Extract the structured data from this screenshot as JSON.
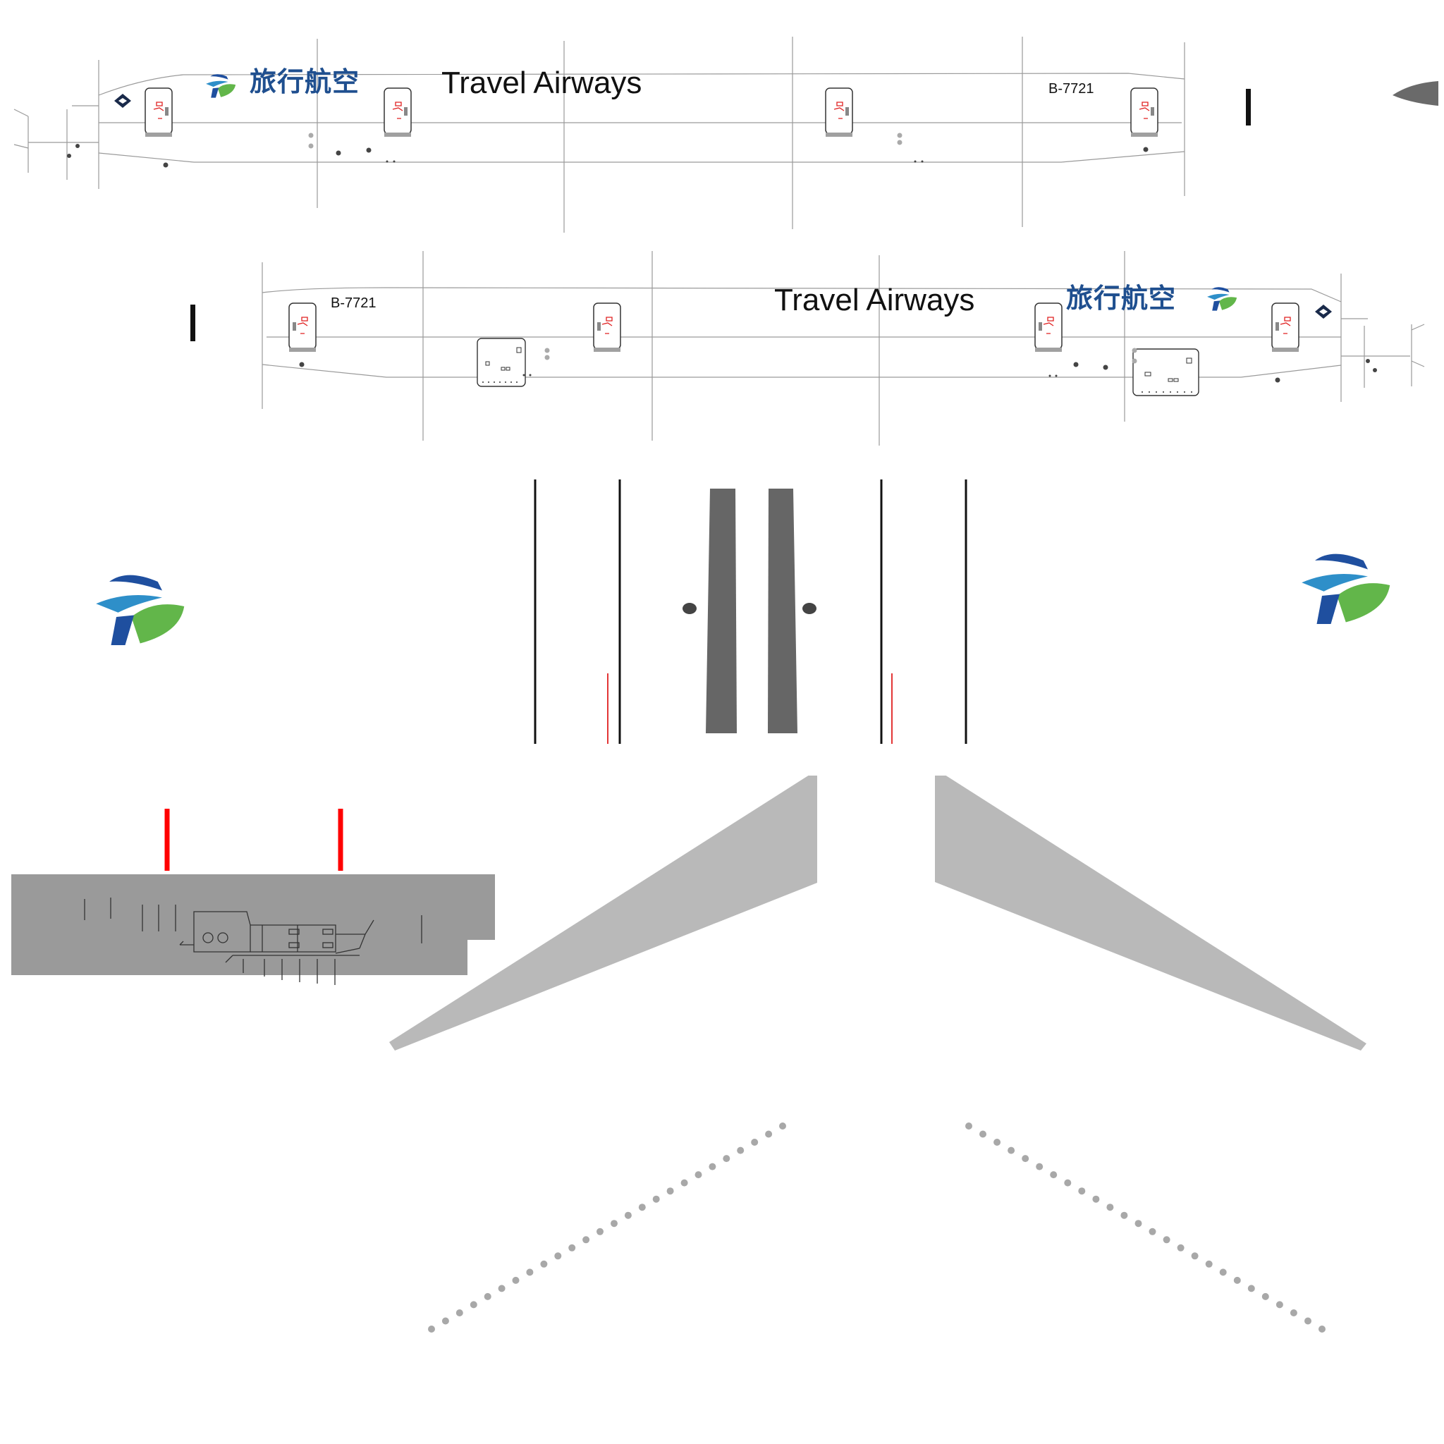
{
  "livery": {
    "airline_name_en": "Travel Airways",
    "airline_name_cn": "旅行航空",
    "registration": "B-7721"
  },
  "icons": {
    "brand_logo": "travel-airways-logo-icon",
    "door_emblem": "door-emergency-icon",
    "diamond_mark": "diamond-emblem-icon"
  },
  "colors": {
    "logo_blue": "#1f4f9f",
    "logo_green": "#7cc242",
    "text_dark_blue": "#1f4f8f",
    "guide_red": "#ff0000",
    "panel_grey": "#9a9a9a",
    "wing_grey": "#b9b9b9",
    "dark_grey": "#666666"
  }
}
